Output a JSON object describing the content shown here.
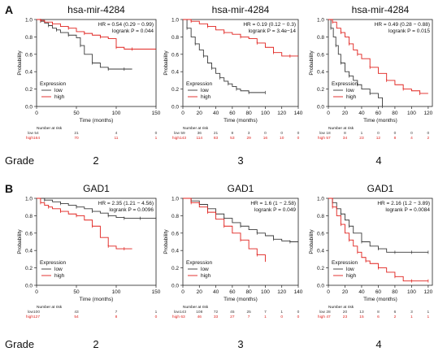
{
  "figure": {
    "panel_labels": [
      "A",
      "B"
    ],
    "grade_label": "Grade",
    "colors": {
      "low": "#3a3a3a",
      "high": "#e0201c",
      "axis": "#222222",
      "text": "#111111"
    },
    "legend_title": "Expression",
    "xlabel": "Time (months)",
    "ylabel": "Probability",
    "number_at_risk_label": "Number at risk"
  },
  "chart_data": [
    {
      "type": "line",
      "title": "hsa-mir-4284",
      "grade": "2",
      "stats": [
        "HR = 0.54 (0.29 − 0.99)",
        "logrank P = 0.044"
      ],
      "xlabel": "Time (months)",
      "ylabel": "Probability",
      "xlim": [
        0,
        150
      ],
      "ylim": [
        0,
        1
      ],
      "xticks": [
        0,
        50,
        100,
        150
      ],
      "yticks": [
        0.0,
        0.2,
        0.4,
        0.6,
        0.8,
        1.0
      ],
      "legend": [
        "low",
        "high"
      ],
      "series": [
        {
          "name": "low",
          "x": [
            0,
            5,
            10,
            15,
            20,
            25,
            30,
            40,
            50,
            55,
            60,
            70,
            80,
            90,
            100,
            110,
            120
          ],
          "y": [
            1.0,
            0.98,
            0.96,
            0.93,
            0.9,
            0.88,
            0.85,
            0.82,
            0.79,
            0.7,
            0.6,
            0.5,
            0.45,
            0.43,
            0.43,
            0.43,
            0.43
          ]
        },
        {
          "name": "high",
          "x": [
            0,
            5,
            10,
            20,
            30,
            40,
            50,
            60,
            70,
            80,
            90,
            100,
            110,
            120,
            150
          ],
          "y": [
            1.0,
            0.99,
            0.97,
            0.95,
            0.92,
            0.9,
            0.86,
            0.84,
            0.82,
            0.8,
            0.78,
            0.68,
            0.66,
            0.66,
            0.66
          ]
        }
      ],
      "risk": {
        "low": [
          "54",
          "21",
          "4",
          "0"
        ],
        "high": [
          "164",
          "70",
          "11",
          "1"
        ]
      }
    },
    {
      "type": "line",
      "title": "hsa-mir-4284",
      "grade": "3",
      "stats": [
        "HR = 0.19 (0.12 − 0.3)",
        "logrank P = 3.4e−14"
      ],
      "xlabel": "Time (months)",
      "ylabel": "Probability",
      "xlim": [
        0,
        140
      ],
      "ylim": [
        0,
        1
      ],
      "xticks": [
        0,
        20,
        40,
        60,
        80,
        100,
        120,
        140
      ],
      "yticks": [
        0.0,
        0.2,
        0.4,
        0.6,
        0.8,
        1.0
      ],
      "legend": [
        "low",
        "high"
      ],
      "series": [
        {
          "name": "low",
          "x": [
            0,
            5,
            10,
            15,
            20,
            25,
            30,
            35,
            40,
            45,
            50,
            55,
            60,
            65,
            70,
            80,
            90,
            100
          ],
          "y": [
            1.0,
            0.9,
            0.8,
            0.72,
            0.65,
            0.58,
            0.5,
            0.44,
            0.38,
            0.33,
            0.29,
            0.26,
            0.23,
            0.2,
            0.18,
            0.16,
            0.16,
            0.16
          ]
        },
        {
          "name": "high",
          "x": [
            0,
            10,
            20,
            30,
            40,
            50,
            60,
            70,
            80,
            90,
            100,
            110,
            120,
            130,
            140
          ],
          "y": [
            1.0,
            0.98,
            0.95,
            0.92,
            0.88,
            0.85,
            0.83,
            0.8,
            0.78,
            0.73,
            0.68,
            0.62,
            0.58,
            0.58,
            0.58
          ]
        }
      ],
      "risk": {
        "low": [
          "59",
          "36",
          "21",
          "8",
          "3",
          "0",
          "0",
          "0"
        ],
        "high": [
          "143",
          "114",
          "83",
          "53",
          "29",
          "16",
          "10",
          "0"
        ]
      }
    },
    {
      "type": "line",
      "title": "hsa-mir-4284",
      "grade": "4",
      "stats": [
        "HR = 0.49 (0.28 − 0.88)",
        "logrank P = 0.015"
      ],
      "xlabel": "Time (months)",
      "ylabel": "Probability",
      "xlim": [
        0,
        125
      ],
      "ylim": [
        0,
        1
      ],
      "xticks": [
        0,
        20,
        40,
        60,
        80,
        100,
        120
      ],
      "yticks": [
        0.0,
        0.2,
        0.4,
        0.6,
        0.8,
        1.0
      ],
      "legend": [
        "low",
        "high"
      ],
      "series": [
        {
          "name": "low",
          "x": [
            0,
            3,
            6,
            9,
            12,
            15,
            20,
            25,
            30,
            35,
            40,
            50,
            60,
            65
          ],
          "y": [
            1.0,
            0.9,
            0.8,
            0.7,
            0.6,
            0.5,
            0.4,
            0.35,
            0.3,
            0.25,
            0.2,
            0.15,
            0.1,
            0.0
          ]
        },
        {
          "name": "high",
          "x": [
            0,
            5,
            10,
            15,
            20,
            25,
            30,
            35,
            40,
            50,
            60,
            70,
            80,
            90,
            100,
            110,
            120
          ],
          "y": [
            1.0,
            0.97,
            0.9,
            0.85,
            0.8,
            0.72,
            0.65,
            0.6,
            0.55,
            0.45,
            0.38,
            0.3,
            0.25,
            0.2,
            0.18,
            0.15,
            0.15
          ]
        }
      ],
      "risk": {
        "low": [
          "18",
          "8",
          "1",
          "0",
          "0",
          "0",
          "0"
        ],
        "high": [
          "57",
          "34",
          "23",
          "12",
          "8",
          "4",
          "2"
        ]
      }
    },
    {
      "type": "line",
      "title": "GAD1",
      "grade": "2",
      "stats": [
        "HR = 2.35 (1.21 − 4.56)",
        "logrank P = 0.0096"
      ],
      "xlabel": "Time (months)",
      "ylabel": "Probability",
      "xlim": [
        0,
        150
      ],
      "ylim": [
        0,
        1
      ],
      "xticks": [
        0,
        50,
        100,
        150
      ],
      "yticks": [
        0.0,
        0.2,
        0.4,
        0.6,
        0.8,
        1.0
      ],
      "legend": [
        "low",
        "high"
      ],
      "series": [
        {
          "name": "low",
          "x": [
            0,
            10,
            20,
            30,
            40,
            50,
            60,
            70,
            80,
            90,
            100,
            110,
            120,
            130,
            140,
            150
          ],
          "y": [
            1.0,
            0.98,
            0.96,
            0.94,
            0.92,
            0.9,
            0.88,
            0.85,
            0.83,
            0.8,
            0.78,
            0.77,
            0.77,
            0.77,
            0.77,
            0.77
          ]
        },
        {
          "name": "high",
          "x": [
            0,
            5,
            10,
            15,
            20,
            30,
            40,
            50,
            60,
            70,
            80,
            90,
            100,
            110,
            120
          ],
          "y": [
            1.0,
            0.95,
            0.92,
            0.9,
            0.88,
            0.85,
            0.82,
            0.8,
            0.75,
            0.68,
            0.55,
            0.45,
            0.42,
            0.42,
            0.42
          ]
        }
      ],
      "risk": {
        "low": [
          "100",
          "43",
          "7",
          "1"
        ],
        "high": [
          "127",
          "54",
          "8",
          "0"
        ]
      }
    },
    {
      "type": "line",
      "title": "GAD1",
      "grade": "3",
      "stats": [
        "HR = 1.6 (1 − 2.58)",
        "logrank P = 0.049"
      ],
      "xlabel": "Time (months)",
      "ylabel": "Probability",
      "xlim": [
        0,
        140
      ],
      "ylim": [
        0,
        1
      ],
      "xticks": [
        0,
        20,
        40,
        60,
        80,
        100,
        120,
        140
      ],
      "yticks": [
        0.0,
        0.2,
        0.4,
        0.6,
        0.8,
        1.0
      ],
      "legend": [
        "low",
        "high"
      ],
      "series": [
        {
          "name": "low",
          "x": [
            0,
            10,
            20,
            30,
            40,
            50,
            60,
            70,
            80,
            90,
            100,
            110,
            120,
            130,
            140
          ],
          "y": [
            1.0,
            0.97,
            0.93,
            0.88,
            0.82,
            0.77,
            0.72,
            0.68,
            0.64,
            0.6,
            0.57,
            0.53,
            0.51,
            0.5,
            0.5
          ]
        },
        {
          "name": "high",
          "x": [
            0,
            10,
            20,
            30,
            40,
            50,
            60,
            70,
            80,
            90,
            100
          ],
          "y": [
            1.0,
            0.95,
            0.9,
            0.84,
            0.76,
            0.68,
            0.6,
            0.52,
            0.42,
            0.35,
            0.27
          ]
        }
      ],
      "risk": {
        "low": [
          "143",
          "108",
          "72",
          "45",
          "25",
          "7",
          "1",
          "0"
        ],
        "high": [
          "63",
          "46",
          "33",
          "27",
          "7",
          "1",
          "0",
          "0"
        ]
      }
    },
    {
      "type": "line",
      "title": "GAD1",
      "grade": "4",
      "stats": [
        "HR = 2.16 (1.2 − 3.89)",
        "logrank P = 0.0084"
      ],
      "xlabel": "Time (months)",
      "ylabel": "Probability",
      "xlim": [
        0,
        125
      ],
      "ylim": [
        0,
        1
      ],
      "xticks": [
        0,
        20,
        40,
        60,
        80,
        100,
        120
      ],
      "yticks": [
        0.0,
        0.2,
        0.4,
        0.6,
        0.8,
        1.0
      ],
      "legend": [
        "low",
        "high"
      ],
      "series": [
        {
          "name": "low",
          "x": [
            0,
            5,
            10,
            15,
            20,
            25,
            30,
            40,
            50,
            60,
            70,
            80,
            90,
            100,
            110,
            120
          ],
          "y": [
            1.0,
            0.95,
            0.88,
            0.82,
            0.75,
            0.68,
            0.6,
            0.5,
            0.45,
            0.42,
            0.38,
            0.38,
            0.38,
            0.38,
            0.38,
            0.38
          ]
        },
        {
          "name": "high",
          "x": [
            0,
            5,
            10,
            15,
            20,
            25,
            30,
            35,
            40,
            45,
            50,
            60,
            70,
            80,
            90,
            100,
            110,
            120
          ],
          "y": [
            1.0,
            0.9,
            0.8,
            0.7,
            0.6,
            0.52,
            0.45,
            0.38,
            0.32,
            0.28,
            0.25,
            0.2,
            0.15,
            0.1,
            0.05,
            0.05,
            0.05,
            0.05
          ]
        }
      ],
      "risk": {
        "low": [
          "28",
          "20",
          "13",
          "8",
          "6",
          "3",
          "1"
        ],
        "high": [
          "47",
          "23",
          "15",
          "6",
          "2",
          "1",
          "1"
        ]
      }
    }
  ]
}
